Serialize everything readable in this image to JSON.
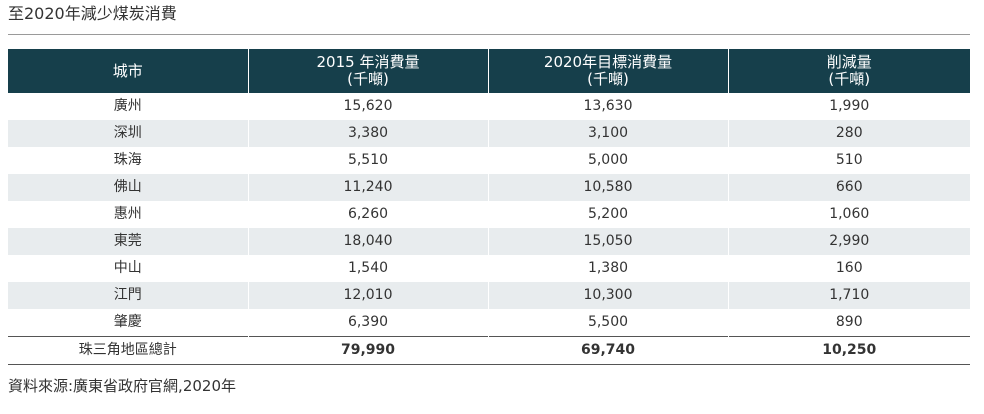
{
  "title": "至2020年減少煤炭消費",
  "table": {
    "headers": [
      {
        "line1": "城市",
        "line2": ""
      },
      {
        "line1": "2015 年消費量",
        "line2": "(千噸)"
      },
      {
        "line1": "2020年目標消費量",
        "line2": "(千噸)"
      },
      {
        "line1": "削減量",
        "line2": "(千噸)"
      }
    ],
    "rows": [
      {
        "city": "廣州",
        "consumption_2015": "15,620",
        "target_2020": "13,630",
        "reduction": "1,990"
      },
      {
        "city": "深圳",
        "consumption_2015": "3,380",
        "target_2020": "3,100",
        "reduction": "280"
      },
      {
        "city": "珠海",
        "consumption_2015": "5,510",
        "target_2020": "5,000",
        "reduction": "510"
      },
      {
        "city": "佛山",
        "consumption_2015": "11,240",
        "target_2020": "10,580",
        "reduction": "660"
      },
      {
        "city": "惠州",
        "consumption_2015": "6,260",
        "target_2020": "5,200",
        "reduction": "1,060"
      },
      {
        "city": "東莞",
        "consumption_2015": "18,040",
        "target_2020": "15,050",
        "reduction": "2,990"
      },
      {
        "city": "中山",
        "consumption_2015": "1,540",
        "target_2020": "1,380",
        "reduction": "160"
      },
      {
        "city": "江門",
        "consumption_2015": "12,010",
        "target_2020": "10,300",
        "reduction": "1,710"
      },
      {
        "city": "肇慶",
        "consumption_2015": "6,390",
        "target_2020": "5,500",
        "reduction": "890"
      }
    ],
    "total": {
      "city": "珠三角地區總計",
      "consumption_2015": "79,990",
      "target_2020": "69,740",
      "reduction": "10,250"
    }
  },
  "source": "資料來源:廣東省政府官網,2020年",
  "colors": {
    "header_background": "#163f4b",
    "header_text": "#ffffff",
    "shaded_row": "#e8ecee",
    "text": "#333333"
  }
}
